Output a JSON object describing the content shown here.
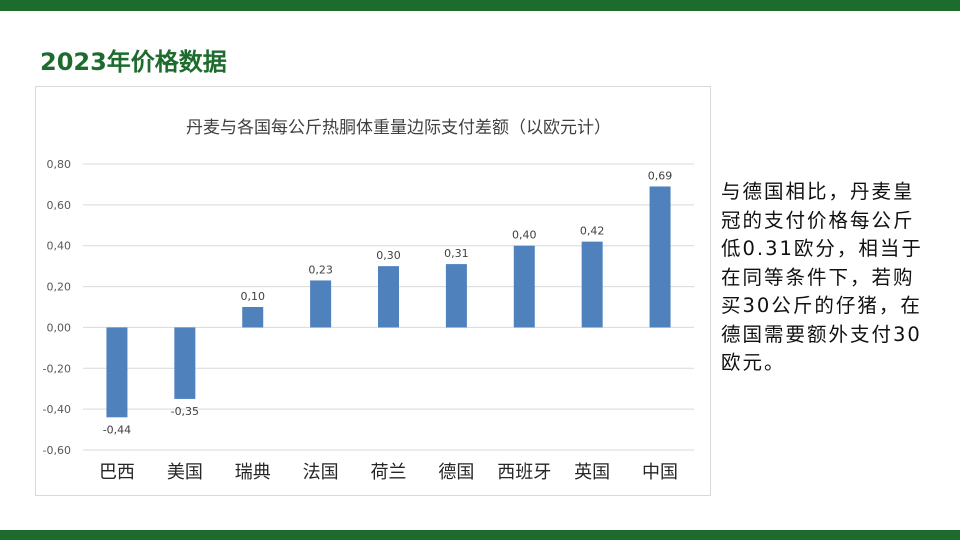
{
  "page": {
    "title": "2023年价格数据",
    "note": "与德国相比，丹麦皇冠的支付价格每公斤低0.31欧分，相当于在同等条件下，若购买30公斤的仔猪，在德国需要额外支付30欧元。"
  },
  "colors": {
    "bar": "#4f81bd",
    "accent": "#1e6b2e",
    "gridline": "#d9d9d9"
  },
  "chart_data": {
    "type": "bar",
    "title": "丹麦与各国每公斤热胴体重量边际支付差额（以欧元计）",
    "categories": [
      "巴西",
      "美国",
      "瑞典",
      "法国",
      "荷兰",
      "德国",
      "西班牙",
      "英国",
      "中国"
    ],
    "values": [
      -0.44,
      -0.35,
      0.1,
      0.23,
      0.3,
      0.31,
      0.4,
      0.42,
      0.69
    ],
    "value_labels": [
      "-0,44",
      "-0,35",
      "0,10",
      "0,23",
      "0,30",
      "0,31",
      "0,40",
      "0,42",
      "0,69"
    ],
    "ylim": [
      -0.6,
      0.8
    ],
    "yticks": [
      0.8,
      0.6,
      0.4,
      0.2,
      0.0,
      -0.2,
      -0.4,
      -0.6
    ],
    "ytick_labels": [
      "0,80",
      "0,60",
      "0,40",
      "0,20",
      "0,00",
      "-0,20",
      "-0,40",
      "-0,60"
    ],
    "grid": true,
    "xlabel": "",
    "ylabel": ""
  }
}
